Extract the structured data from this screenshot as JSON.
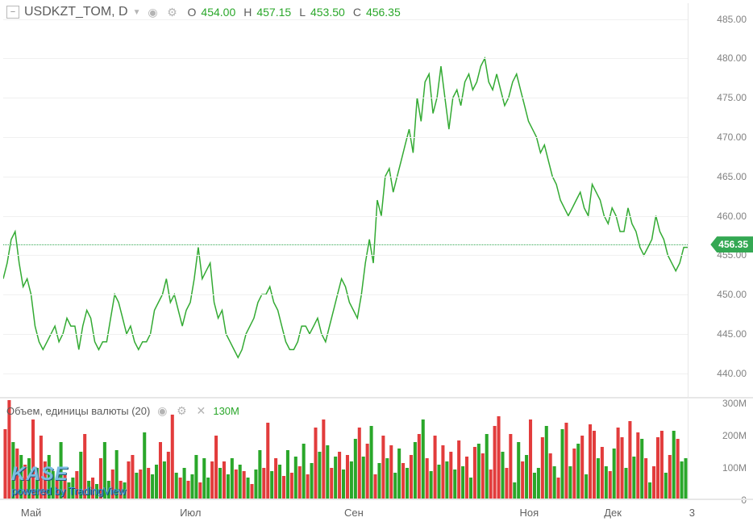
{
  "symbol": {
    "name": "USDKZT_TOM",
    "interval": "D",
    "display": "USDKZT_TOM, D"
  },
  "ohlc": {
    "o_label": "O",
    "o": "454.00",
    "h_label": "H",
    "h": "457.15",
    "l_label": "L",
    "l": "453.50",
    "c_label": "C",
    "c": "456.35"
  },
  "colors": {
    "line": "#33aa33",
    "badge_bg": "#34a853",
    "vol_up": "#2aa72a",
    "vol_down": "#e23c3c",
    "grid": "#f0f0f0",
    "label": "#818181"
  },
  "price_chart": {
    "type": "line",
    "ylim": [
      437,
      487
    ],
    "ytick_step": 5,
    "yticks": [
      440,
      445,
      450,
      455,
      460,
      465,
      470,
      475,
      480,
      485
    ],
    "current": 456.35,
    "series": [
      452,
      454,
      457,
      458,
      454,
      451,
      452,
      450,
      446,
      444,
      443,
      444,
      445,
      446,
      444,
      445,
      447,
      446,
      446,
      443,
      446,
      448,
      447,
      444,
      443,
      444,
      444,
      447,
      450,
      449,
      447,
      445,
      446,
      444,
      443,
      444,
      444,
      445,
      448,
      449,
      450,
      452,
      449,
      450,
      448,
      446,
      448,
      449,
      452,
      456,
      452,
      453,
      454,
      449,
      447,
      448,
      445,
      444,
      443,
      442,
      443,
      445,
      446,
      447,
      449,
      450,
      450,
      451,
      449,
      448,
      446,
      444,
      443,
      443,
      444,
      446,
      446,
      445,
      446,
      447,
      445,
      444,
      446,
      448,
      450,
      452,
      451,
      449,
      448,
      447,
      450,
      454,
      457,
      454,
      462,
      460,
      465,
      466,
      463,
      465,
      467,
      469,
      471,
      468,
      475,
      472,
      477,
      478,
      473,
      475,
      479,
      475,
      471,
      475,
      476,
      474,
      477,
      478,
      476,
      477,
      479,
      480,
      477,
      476,
      478,
      476,
      474,
      475,
      477,
      478,
      476,
      474,
      472,
      471,
      470,
      468,
      469,
      467,
      465,
      464,
      462,
      461,
      460,
      461,
      462,
      463,
      461,
      460,
      464,
      463,
      462,
      460,
      459,
      461,
      460,
      458,
      458,
      461,
      459,
      458,
      456,
      455,
      456,
      457,
      460,
      458,
      457,
      455,
      454,
      453,
      454,
      456,
      456
    ],
    "x_months_at_index": {
      "Май": 7,
      "Июл": 47,
      "Сен": 88,
      "Ноя": 132,
      "Дек": 153
    },
    "x_last_label": "3"
  },
  "volume_chart": {
    "type": "bar",
    "title": "Объем, единицы валюты (20)",
    "value_label": "130M",
    "ylim": [
      0,
      310
    ],
    "yticks": [
      0,
      100,
      200,
      300
    ],
    "bars": [
      {
        "v": 220,
        "d": "d"
      },
      {
        "v": 310,
        "d": "d"
      },
      {
        "v": 180,
        "d": "u"
      },
      {
        "v": 160,
        "d": "d"
      },
      {
        "v": 140,
        "d": "u"
      },
      {
        "v": 110,
        "d": "d"
      },
      {
        "v": 130,
        "d": "u"
      },
      {
        "v": 250,
        "d": "d"
      },
      {
        "v": 100,
        "d": "u"
      },
      {
        "v": 200,
        "d": "d"
      },
      {
        "v": 120,
        "d": "d"
      },
      {
        "v": 140,
        "d": "u"
      },
      {
        "v": 90,
        "d": "u"
      },
      {
        "v": 70,
        "d": "d"
      },
      {
        "v": 180,
        "d": "u"
      },
      {
        "v": 80,
        "d": "d"
      },
      {
        "v": 55,
        "d": "u"
      },
      {
        "v": 70,
        "d": "u"
      },
      {
        "v": 90,
        "d": "d"
      },
      {
        "v": 150,
        "d": "u"
      },
      {
        "v": 205,
        "d": "d"
      },
      {
        "v": 60,
        "d": "u"
      },
      {
        "v": 70,
        "d": "d"
      },
      {
        "v": 50,
        "d": "u"
      },
      {
        "v": 130,
        "d": "d"
      },
      {
        "v": 180,
        "d": "u"
      },
      {
        "v": 60,
        "d": "u"
      },
      {
        "v": 95,
        "d": "d"
      },
      {
        "v": 155,
        "d": "u"
      },
      {
        "v": 60,
        "d": "d"
      },
      {
        "v": 55,
        "d": "u"
      },
      {
        "v": 120,
        "d": "d"
      },
      {
        "v": 140,
        "d": "d"
      },
      {
        "v": 85,
        "d": "u"
      },
      {
        "v": 95,
        "d": "d"
      },
      {
        "v": 210,
        "d": "u"
      },
      {
        "v": 100,
        "d": "d"
      },
      {
        "v": 80,
        "d": "u"
      },
      {
        "v": 110,
        "d": "u"
      },
      {
        "v": 180,
        "d": "d"
      },
      {
        "v": 120,
        "d": "u"
      },
      {
        "v": 150,
        "d": "d"
      },
      {
        "v": 265,
        "d": "d"
      },
      {
        "v": 85,
        "d": "u"
      },
      {
        "v": 70,
        "d": "d"
      },
      {
        "v": 100,
        "d": "u"
      },
      {
        "v": 60,
        "d": "d"
      },
      {
        "v": 80,
        "d": "u"
      },
      {
        "v": 140,
        "d": "u"
      },
      {
        "v": 55,
        "d": "d"
      },
      {
        "v": 130,
        "d": "u"
      },
      {
        "v": 70,
        "d": "u"
      },
      {
        "v": 120,
        "d": "d"
      },
      {
        "v": 200,
        "d": "d"
      },
      {
        "v": 100,
        "d": "u"
      },
      {
        "v": 120,
        "d": "d"
      },
      {
        "v": 80,
        "d": "u"
      },
      {
        "v": 130,
        "d": "u"
      },
      {
        "v": 95,
        "d": "d"
      },
      {
        "v": 110,
        "d": "u"
      },
      {
        "v": 90,
        "d": "d"
      },
      {
        "v": 70,
        "d": "u"
      },
      {
        "v": 50,
        "d": "d"
      },
      {
        "v": 95,
        "d": "u"
      },
      {
        "v": 155,
        "d": "u"
      },
      {
        "v": 100,
        "d": "d"
      },
      {
        "v": 240,
        "d": "d"
      },
      {
        "v": 90,
        "d": "u"
      },
      {
        "v": 130,
        "d": "d"
      },
      {
        "v": 110,
        "d": "u"
      },
      {
        "v": 75,
        "d": "d"
      },
      {
        "v": 155,
        "d": "u"
      },
      {
        "v": 85,
        "d": "d"
      },
      {
        "v": 135,
        "d": "u"
      },
      {
        "v": 105,
        "d": "d"
      },
      {
        "v": 175,
        "d": "u"
      },
      {
        "v": 80,
        "d": "d"
      },
      {
        "v": 115,
        "d": "u"
      },
      {
        "v": 225,
        "d": "d"
      },
      {
        "v": 150,
        "d": "u"
      },
      {
        "v": 250,
        "d": "d"
      },
      {
        "v": 170,
        "d": "u"
      },
      {
        "v": 100,
        "d": "d"
      },
      {
        "v": 135,
        "d": "u"
      },
      {
        "v": 150,
        "d": "d"
      },
      {
        "v": 95,
        "d": "u"
      },
      {
        "v": 140,
        "d": "d"
      },
      {
        "v": 120,
        "d": "u"
      },
      {
        "v": 190,
        "d": "u"
      },
      {
        "v": 225,
        "d": "d"
      },
      {
        "v": 135,
        "d": "u"
      },
      {
        "v": 175,
        "d": "d"
      },
      {
        "v": 230,
        "d": "u"
      },
      {
        "v": 80,
        "d": "d"
      },
      {
        "v": 115,
        "d": "u"
      },
      {
        "v": 200,
        "d": "d"
      },
      {
        "v": 130,
        "d": "u"
      },
      {
        "v": 170,
        "d": "d"
      },
      {
        "v": 85,
        "d": "u"
      },
      {
        "v": 160,
        "d": "u"
      },
      {
        "v": 115,
        "d": "d"
      },
      {
        "v": 100,
        "d": "u"
      },
      {
        "v": 140,
        "d": "d"
      },
      {
        "v": 180,
        "d": "u"
      },
      {
        "v": 205,
        "d": "d"
      },
      {
        "v": 250,
        "d": "u"
      },
      {
        "v": 130,
        "d": "d"
      },
      {
        "v": 90,
        "d": "u"
      },
      {
        "v": 200,
        "d": "d"
      },
      {
        "v": 110,
        "d": "u"
      },
      {
        "v": 170,
        "d": "d"
      },
      {
        "v": 120,
        "d": "u"
      },
      {
        "v": 150,
        "d": "d"
      },
      {
        "v": 95,
        "d": "u"
      },
      {
        "v": 185,
        "d": "d"
      },
      {
        "v": 105,
        "d": "u"
      },
      {
        "v": 135,
        "d": "d"
      },
      {
        "v": 70,
        "d": "u"
      },
      {
        "v": 165,
        "d": "d"
      },
      {
        "v": 175,
        "d": "u"
      },
      {
        "v": 145,
        "d": "d"
      },
      {
        "v": 205,
        "d": "u"
      },
      {
        "v": 95,
        "d": "d"
      },
      {
        "v": 230,
        "d": "d"
      },
      {
        "v": 260,
        "d": "d"
      },
      {
        "v": 150,
        "d": "u"
      },
      {
        "v": 100,
        "d": "d"
      },
      {
        "v": 205,
        "d": "d"
      },
      {
        "v": 55,
        "d": "u"
      },
      {
        "v": 180,
        "d": "u"
      },
      {
        "v": 120,
        "d": "d"
      },
      {
        "v": 140,
        "d": "u"
      },
      {
        "v": 250,
        "d": "d"
      },
      {
        "v": 85,
        "d": "u"
      },
      {
        "v": 100,
        "d": "u"
      },
      {
        "v": 195,
        "d": "d"
      },
      {
        "v": 230,
        "d": "u"
      },
      {
        "v": 145,
        "d": "d"
      },
      {
        "v": 105,
        "d": "u"
      },
      {
        "v": 70,
        "d": "d"
      },
      {
        "v": 220,
        "d": "u"
      },
      {
        "v": 240,
        "d": "d"
      },
      {
        "v": 105,
        "d": "u"
      },
      {
        "v": 160,
        "d": "d"
      },
      {
        "v": 175,
        "d": "u"
      },
      {
        "v": 200,
        "d": "d"
      },
      {
        "v": 80,
        "d": "u"
      },
      {
        "v": 235,
        "d": "d"
      },
      {
        "v": 215,
        "d": "d"
      },
      {
        "v": 130,
        "d": "u"
      },
      {
        "v": 165,
        "d": "d"
      },
      {
        "v": 105,
        "d": "u"
      },
      {
        "v": 90,
        "d": "d"
      },
      {
        "v": 160,
        "d": "u"
      },
      {
        "v": 225,
        "d": "d"
      },
      {
        "v": 195,
        "d": "d"
      },
      {
        "v": 100,
        "d": "u"
      },
      {
        "v": 245,
        "d": "d"
      },
      {
        "v": 135,
        "d": "u"
      },
      {
        "v": 210,
        "d": "d"
      },
      {
        "v": 190,
        "d": "u"
      },
      {
        "v": 130,
        "d": "d"
      },
      {
        "v": 55,
        "d": "u"
      },
      {
        "v": 105,
        "d": "d"
      },
      {
        "v": 195,
        "d": "d"
      },
      {
        "v": 215,
        "d": "d"
      },
      {
        "v": 85,
        "d": "u"
      },
      {
        "v": 140,
        "d": "d"
      },
      {
        "v": 215,
        "d": "u"
      },
      {
        "v": 190,
        "d": "d"
      },
      {
        "v": 120,
        "d": "u"
      },
      {
        "v": 130,
        "d": "u"
      }
    ]
  },
  "watermark": {
    "brand": "KASE",
    "powered": "powered by TradingView"
  }
}
